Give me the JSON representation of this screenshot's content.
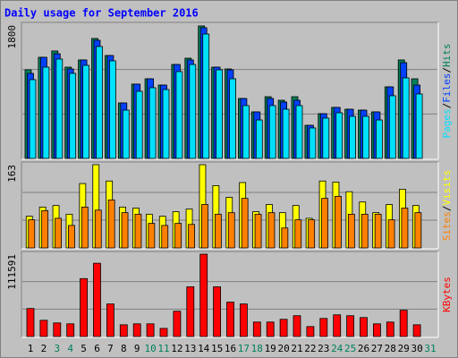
{
  "chart_data": {
    "type": "bar",
    "title": "Daily usage for September 2016",
    "categories": [
      "1",
      "2",
      "3",
      "4",
      "5",
      "6",
      "7",
      "8",
      "9",
      "10",
      "11",
      "12",
      "13",
      "14",
      "15",
      "16",
      "17",
      "18",
      "19",
      "20",
      "21",
      "22",
      "23",
      "24",
      "25",
      "26",
      "27",
      "28",
      "29",
      "30",
      "31"
    ],
    "category_colors": [
      "#000000",
      "#000000",
      "#00805c",
      "#00805c",
      "#000000",
      "#000000",
      "#000000",
      "#000000",
      "#000000",
      "#00805c",
      "#00805c",
      "#000000",
      "#000000",
      "#000000",
      "#000000",
      "#000000",
      "#00805c",
      "#00805c",
      "#000000",
      "#000000",
      "#000000",
      "#000000",
      "#000000",
      "#00805c",
      "#00805c",
      "#000000",
      "#000000",
      "#000000",
      "#000000",
      "#000000",
      "#00805c"
    ],
    "legend_separator": "/",
    "grid_divisions": 3,
    "panels": [
      {
        "ylim": [
          0,
          1800
        ],
        "yticks": [
          1800
        ],
        "series": [
          {
            "name": "Hits",
            "color": "#00805c",
            "values": [
              1196,
              1365,
              1450,
              1232,
              1329,
              1619,
              1389,
              749,
              1003,
              1075,
              990,
              1268,
              1353,
              1788,
              1232,
              1208,
              809,
              628,
              833,
              785,
              833,
              447,
              604,
              689,
              664,
              652,
              628,
              966,
              1329,
              1075,
              null
            ]
          },
          {
            "name": "Files",
            "color": "#0040ff",
            "values": [
              1148,
              1365,
              1413,
              1208,
              1329,
              1595,
              1389,
              749,
              1003,
              1075,
              990,
              1268,
              1329,
              1764,
              1232,
              1196,
              809,
              628,
              809,
              761,
              785,
              447,
              604,
              689,
              664,
              652,
              628,
              966,
              1292,
              990,
              null
            ]
          },
          {
            "name": "Pages",
            "color": "#00e0ff",
            "values": [
              1063,
              1232,
              1341,
              1148,
              1256,
              1510,
              1317,
              652,
              906,
              954,
              930,
              1172,
              1268,
              1679,
              1196,
              1075,
              713,
              519,
              713,
              664,
              713,
              411,
              544,
              616,
              568,
              568,
              519,
              846,
              1087,
              870,
              null
            ]
          }
        ]
      },
      {
        "ylim": [
          0,
          163
        ],
        "yticks": [
          163
        ],
        "series": [
          {
            "name": "Visits",
            "color": "#ffff00",
            "values": [
              62,
              80,
              83,
              66,
              126,
              163,
              131,
              80,
              78,
              66,
              62,
              71,
              76,
              163,
              122,
              99,
              128,
              71,
              85,
              69,
              83,
              58,
              131,
              129,
              110,
              90,
              69,
              85,
              115,
              83,
              null
            ]
          },
          {
            "name": "Sites",
            "color": "#ff8000",
            "values": [
              55,
              73,
              58,
              44,
              80,
              74,
              94,
              69,
              66,
              48,
              44,
              48,
              46,
              85,
              66,
              69,
              97,
              66,
              69,
              39,
              55,
              55,
              97,
              101,
              66,
              66,
              66,
              55,
              78,
              69,
              null
            ]
          }
        ]
      },
      {
        "ylim": [
          0,
          111591
        ],
        "yticks": [
          111591
        ],
        "series": [
          {
            "name": "KBytes",
            "color": "#ff0000",
            "values": [
              38000,
              22000,
              18400,
              17200,
              78500,
              99300,
              44100,
              15900,
              17200,
              17200,
              11000,
              34300,
              67400,
              111591,
              67400,
              46600,
              44100,
              19600,
              19600,
              23300,
              28200,
              13500,
              24500,
              29400,
              28200,
              25700,
              17200,
              19600,
              35600,
              15900,
              null
            ]
          }
        ]
      }
    ]
  }
}
